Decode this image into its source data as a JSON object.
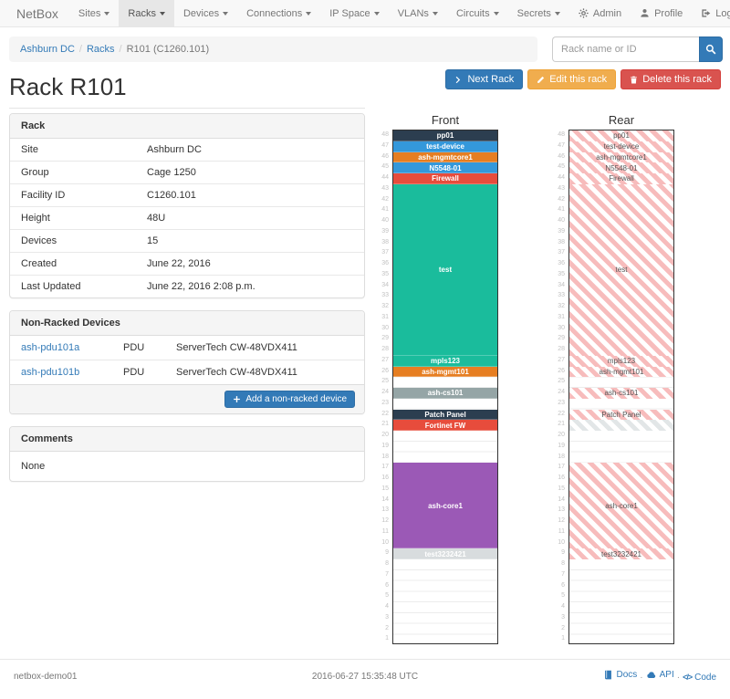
{
  "navbar": {
    "brand": "NetBox",
    "items": [
      {
        "label": "Sites",
        "active": false
      },
      {
        "label": "Racks",
        "active": true
      },
      {
        "label": "Devices",
        "active": false
      },
      {
        "label": "Connections",
        "active": false
      },
      {
        "label": "IP Space",
        "active": false
      },
      {
        "label": "VLANs",
        "active": false
      },
      {
        "label": "Circuits",
        "active": false
      },
      {
        "label": "Secrets",
        "active": false
      }
    ],
    "right_items": [
      {
        "label": "Admin",
        "icon": "gear-icon"
      },
      {
        "label": "Profile",
        "icon": "user-icon"
      },
      {
        "label": "Log out",
        "icon": "logout-icon"
      }
    ]
  },
  "breadcrumb": {
    "items": [
      {
        "label": "Ashburn DC",
        "link": true
      },
      {
        "label": "Racks",
        "link": true
      },
      {
        "label": "R101 (C1260.101)",
        "link": false
      }
    ]
  },
  "search": {
    "placeholder": "Rack name or ID"
  },
  "page": {
    "title": "Rack R101",
    "buttons": [
      {
        "label": "Next Rack",
        "style": "primary",
        "icon": "chevron-right-icon"
      },
      {
        "label": "Edit this rack",
        "style": "warning",
        "icon": "pencil-icon"
      },
      {
        "label": "Delete this rack",
        "style": "danger",
        "icon": "trash-icon"
      }
    ]
  },
  "rack_panel": {
    "title": "Rack",
    "rows": [
      {
        "label": "Site",
        "value": "Ashburn DC",
        "link": true
      },
      {
        "label": "Group",
        "value": "Cage 1250",
        "link": true
      },
      {
        "label": "Facility ID",
        "value": "C1260.101",
        "link": false
      },
      {
        "label": "Height",
        "value": "48U",
        "link": false
      },
      {
        "label": "Devices",
        "value": "15",
        "link": true
      },
      {
        "label": "Created",
        "value": "June 22, 2016",
        "link": false
      },
      {
        "label": "Last Updated",
        "value": "June 22, 2016 2:08 p.m.",
        "link": false
      }
    ]
  },
  "non_racked": {
    "title": "Non-Racked Devices",
    "rows": [
      {
        "name": "ash-pdu101a",
        "role": "PDU",
        "model": "ServerTech CW-48VDX411"
      },
      {
        "name": "ash-pdu101b",
        "role": "PDU",
        "model": "ServerTech CW-48VDX411"
      }
    ],
    "add_button": "Add a non-racked device"
  },
  "comments": {
    "title": "Comments",
    "body": "None"
  },
  "elevations": {
    "front_title": "Front",
    "rear_title": "Rear",
    "units_total": 48,
    "devices": [
      {
        "top_u": 48,
        "height": 1,
        "label": "pp01",
        "color": "#2c3e50"
      },
      {
        "top_u": 47,
        "height": 1,
        "label": "test-device",
        "color": "#3498db"
      },
      {
        "top_u": 46,
        "height": 1,
        "label": "ash-mgmtcore1",
        "color": "#e67e22"
      },
      {
        "top_u": 45,
        "height": 1,
        "label": "N5548-01",
        "color": "#3498db"
      },
      {
        "top_u": 44,
        "height": 1,
        "label": "Firewall",
        "color": "#e74c3c"
      },
      {
        "top_u": 43,
        "height": 16,
        "label": "test",
        "color": "#1abc9c"
      },
      {
        "top_u": 27,
        "height": 1,
        "label": "mpls123",
        "color": "#1abc9c"
      },
      {
        "top_u": 26,
        "height": 1,
        "label": "ash-mgmt101",
        "color": "#e67e22"
      },
      {
        "top_u": 24,
        "height": 1,
        "label": "ash-cs101",
        "color": "#95a5a6"
      },
      {
        "top_u": 22,
        "height": 1,
        "label": "Patch Panel",
        "color": "#2c3e50"
      },
      {
        "top_u": 21,
        "height": 1,
        "label": "Fortinet FW",
        "color": "#e74c3c",
        "rear_variant": "gray-unlabeled"
      },
      {
        "top_u": 17,
        "height": 8,
        "label": "ash-core1",
        "color": "#9b59b6"
      },
      {
        "top_u": 9,
        "height": 1,
        "label": "test3232421",
        "color": "#d8dcde"
      }
    ]
  },
  "footer": {
    "hostname": "netbox-demo01",
    "timestamp": "2016-06-27 15:35:48 UTC",
    "links": [
      {
        "label": "Docs",
        "icon": "book-icon"
      },
      {
        "label": "API",
        "icon": "cloud-icon"
      },
      {
        "label": "Code",
        "icon": "code-icon"
      }
    ]
  },
  "colors": {
    "accent": "#337ab7",
    "warning": "#f0ad4e",
    "danger": "#d9534f",
    "rear_stripe": "#f7bcbc",
    "rear_stripe_gray": "#e2e6e7"
  }
}
